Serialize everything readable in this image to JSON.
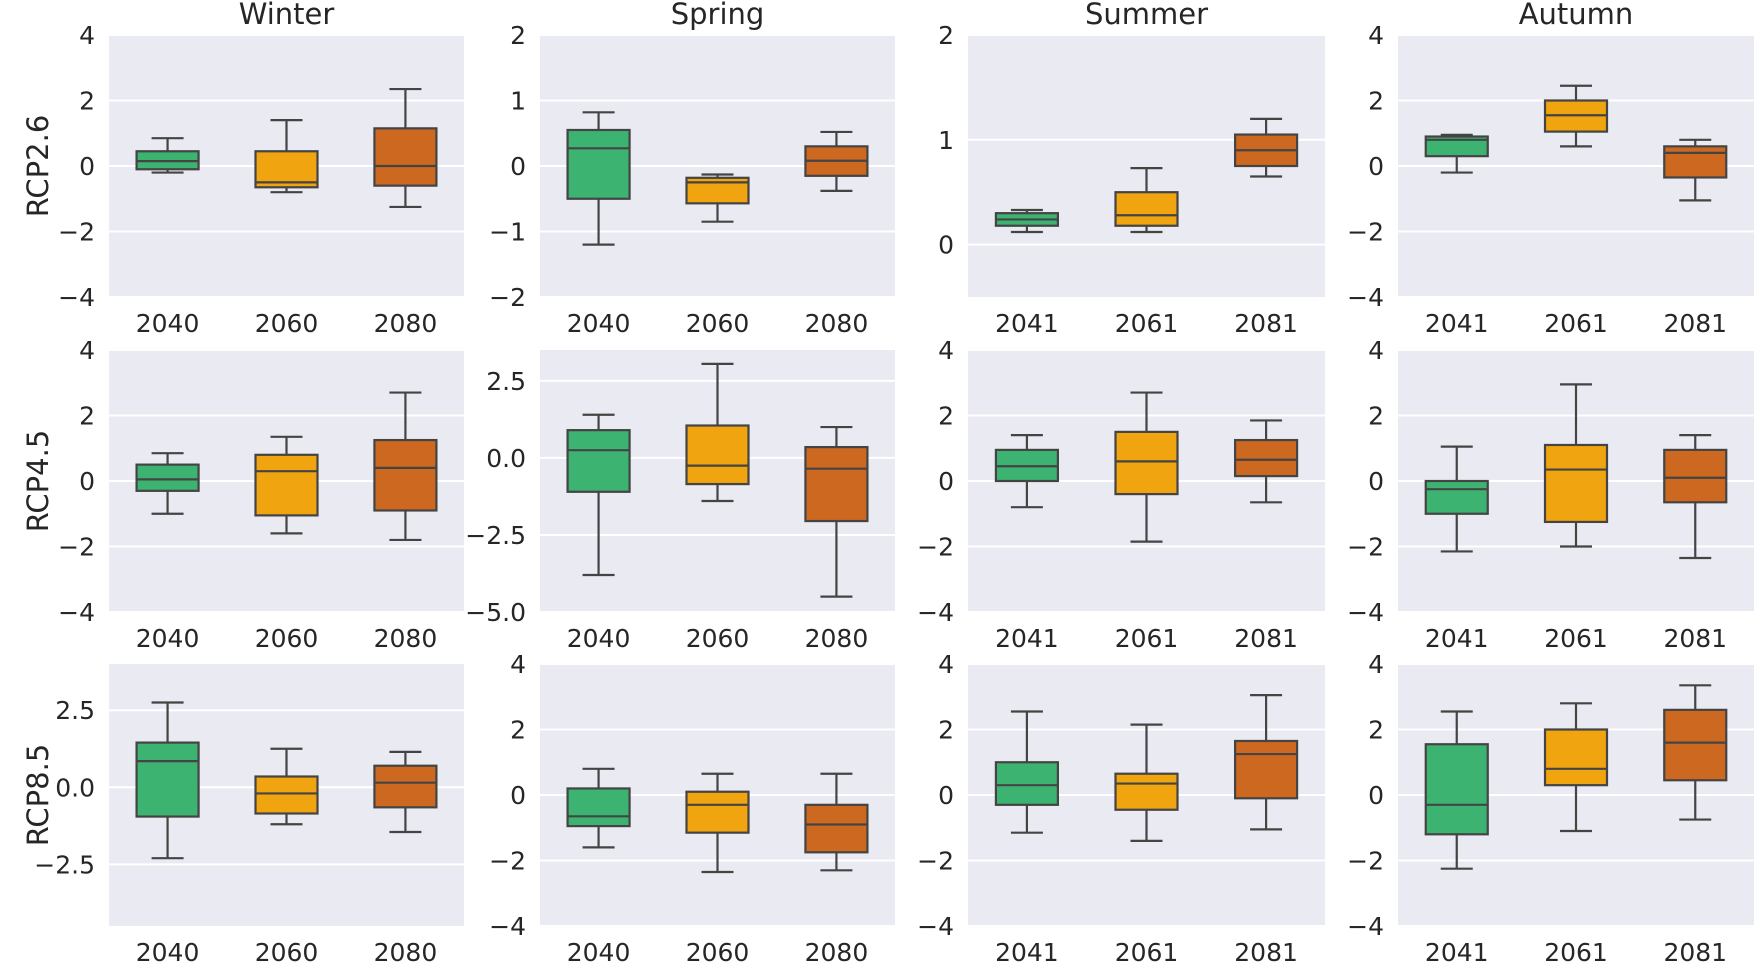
{
  "chart_data": {
    "type": "box",
    "col_titles": [
      "Winter",
      "Spring",
      "Summer",
      "Autumn"
    ],
    "row_labels": [
      "RCP2.6",
      "RCP4.5",
      "RCP8.5"
    ],
    "series_colors": [
      "#3cb371",
      "#f0a40f",
      "#cd6820"
    ],
    "panels": [
      {
        "row": 0,
        "col": 0,
        "ylim": [
          -4,
          4
        ],
        "yticks": [
          -4,
          -2,
          0,
          2,
          4
        ],
        "ytick_labels": [
          "−4",
          "−2",
          "0",
          "2",
          "4"
        ],
        "categories": [
          "2040",
          "2060",
          "2080"
        ],
        "boxes": [
          [
            -0.2,
            -0.1,
            0.15,
            0.45,
            0.85
          ],
          [
            -0.8,
            -0.65,
            -0.5,
            0.45,
            1.4
          ],
          [
            -1.25,
            -0.6,
            0.0,
            1.15,
            2.35
          ]
        ]
      },
      {
        "row": 0,
        "col": 1,
        "ylim": [
          -2,
          2
        ],
        "yticks": [
          -2,
          -1,
          0,
          1,
          2
        ],
        "ytick_labels": [
          "−2",
          "−1",
          "0",
          "1",
          "2"
        ],
        "categories": [
          "2040",
          "2060",
          "2080"
        ],
        "boxes": [
          [
            -1.2,
            -0.5,
            0.27,
            0.55,
            0.82
          ],
          [
            -0.85,
            -0.57,
            -0.25,
            -0.18,
            -0.13
          ],
          [
            -0.38,
            -0.15,
            0.08,
            0.3,
            0.52
          ]
        ]
      },
      {
        "row": 0,
        "col": 2,
        "ylim": [
          -0.5,
          2
        ],
        "yticks": [
          0,
          1,
          2
        ],
        "ytick_labels": [
          "0",
          "1",
          "2"
        ],
        "categories": [
          "2041",
          "2061",
          "2081"
        ],
        "boxes": [
          [
            0.12,
            0.18,
            0.24,
            0.3,
            0.33
          ],
          [
            0.12,
            0.18,
            0.28,
            0.5,
            0.73
          ],
          [
            0.65,
            0.75,
            0.9,
            1.05,
            1.2
          ]
        ]
      },
      {
        "row": 0,
        "col": 3,
        "ylim": [
          -4,
          4
        ],
        "yticks": [
          -4,
          -2,
          0,
          2,
          4
        ],
        "ytick_labels": [
          "−4",
          "−2",
          "0",
          "2",
          "4"
        ],
        "categories": [
          "2041",
          "2061",
          "2081"
        ],
        "boxes": [
          [
            -0.2,
            0.3,
            0.8,
            0.9,
            0.95
          ],
          [
            0.6,
            1.05,
            1.55,
            2.0,
            2.45
          ],
          [
            -1.05,
            -0.35,
            0.4,
            0.6,
            0.8
          ]
        ]
      },
      {
        "row": 1,
        "col": 0,
        "ylim": [
          -4,
          4
        ],
        "yticks": [
          -4,
          -2,
          0,
          2,
          4
        ],
        "ytick_labels": [
          "−4",
          "−2",
          "0",
          "2",
          "4"
        ],
        "categories": [
          "2040",
          "2060",
          "2080"
        ],
        "boxes": [
          [
            -1.0,
            -0.3,
            0.05,
            0.5,
            0.85
          ],
          [
            -1.6,
            -1.05,
            0.3,
            0.8,
            1.35
          ],
          [
            -1.8,
            -0.9,
            0.4,
            1.25,
            2.7
          ]
        ]
      },
      {
        "row": 1,
        "col": 1,
        "ylim": [
          -5,
          3.5
        ],
        "yticks": [
          -5,
          -2.5,
          0,
          2.5
        ],
        "ytick_labels": [
          "−5.0",
          "−2.5",
          "0.0",
          "2.5"
        ],
        "categories": [
          "2040",
          "2060",
          "2080"
        ],
        "boxes": [
          [
            -3.8,
            -1.1,
            0.25,
            0.9,
            1.4
          ],
          [
            -1.4,
            -0.85,
            -0.25,
            1.05,
            3.05
          ],
          [
            -4.5,
            -2.05,
            -0.35,
            0.35,
            1.0
          ]
        ]
      },
      {
        "row": 1,
        "col": 2,
        "ylim": [
          -4,
          4
        ],
        "yticks": [
          -4,
          -2,
          0,
          2,
          4
        ],
        "ytick_labels": [
          "−4",
          "−2",
          "0",
          "2",
          "4"
        ],
        "categories": [
          "2041",
          "2061",
          "2081"
        ],
        "boxes": [
          [
            -0.8,
            0.0,
            0.45,
            0.95,
            1.4
          ],
          [
            -1.85,
            -0.4,
            0.6,
            1.5,
            2.7
          ],
          [
            -0.65,
            0.15,
            0.65,
            1.25,
            1.85
          ]
        ]
      },
      {
        "row": 1,
        "col": 3,
        "ylim": [
          -4,
          4
        ],
        "yticks": [
          -4,
          -2,
          0,
          2,
          4
        ],
        "ytick_labels": [
          "−4",
          "−2",
          "0",
          "2",
          "4"
        ],
        "categories": [
          "2041",
          "2061",
          "2081"
        ],
        "boxes": [
          [
            -2.15,
            -1.0,
            -0.25,
            0.0,
            1.05
          ],
          [
            -2.0,
            -1.25,
            0.35,
            1.1,
            2.95
          ],
          [
            -2.35,
            -0.65,
            0.1,
            0.95,
            1.4
          ]
        ]
      },
      {
        "row": 2,
        "col": 0,
        "ylim": [
          -4.5,
          4
        ],
        "yticks": [
          -2.5,
          0,
          2.5
        ],
        "ytick_labels": [
          "−2.5",
          "0.0",
          "2.5"
        ],
        "categories": [
          "2040",
          "2060",
          "2080"
        ],
        "boxes": [
          [
            -2.3,
            -0.95,
            0.85,
            1.45,
            2.75
          ],
          [
            -1.2,
            -0.85,
            -0.2,
            0.35,
            1.25
          ],
          [
            -1.45,
            -0.65,
            0.15,
            0.7,
            1.15
          ]
        ]
      },
      {
        "row": 2,
        "col": 1,
        "ylim": [
          -4,
          4
        ],
        "yticks": [
          -4,
          -2,
          0,
          2,
          4
        ],
        "ytick_labels": [
          "−4",
          "−2",
          "0",
          "2",
          "4"
        ],
        "categories": [
          "2040",
          "2060",
          "2080"
        ],
        "boxes": [
          [
            -1.6,
            -0.95,
            -0.65,
            0.2,
            0.8
          ],
          [
            -2.35,
            -1.15,
            -0.3,
            0.1,
            0.65
          ],
          [
            -2.3,
            -1.75,
            -0.9,
            -0.3,
            0.65
          ]
        ]
      },
      {
        "row": 2,
        "col": 2,
        "ylim": [
          -4,
          4
        ],
        "yticks": [
          -4,
          -2,
          0,
          2,
          4
        ],
        "ytick_labels": [
          "−4",
          "−2",
          "0",
          "2",
          "4"
        ],
        "categories": [
          "2041",
          "2061",
          "2081"
        ],
        "boxes": [
          [
            -1.15,
            -0.3,
            0.3,
            1.0,
            2.55
          ],
          [
            -1.4,
            -0.45,
            0.35,
            0.65,
            2.15
          ],
          [
            -1.05,
            -0.1,
            1.25,
            1.65,
            3.05
          ]
        ]
      },
      {
        "row": 2,
        "col": 3,
        "ylim": [
          -4,
          4
        ],
        "yticks": [
          -4,
          -2,
          0,
          2,
          4
        ],
        "ytick_labels": [
          "−4",
          "−2",
          "0",
          "2",
          "4"
        ],
        "categories": [
          "2041",
          "2061",
          "2081"
        ],
        "boxes": [
          [
            -2.25,
            -1.2,
            -0.3,
            1.55,
            2.55
          ],
          [
            -1.1,
            0.3,
            0.8,
            2.0,
            2.8
          ],
          [
            -0.75,
            0.45,
            1.6,
            2.6,
            3.35
          ]
        ]
      }
    ]
  }
}
